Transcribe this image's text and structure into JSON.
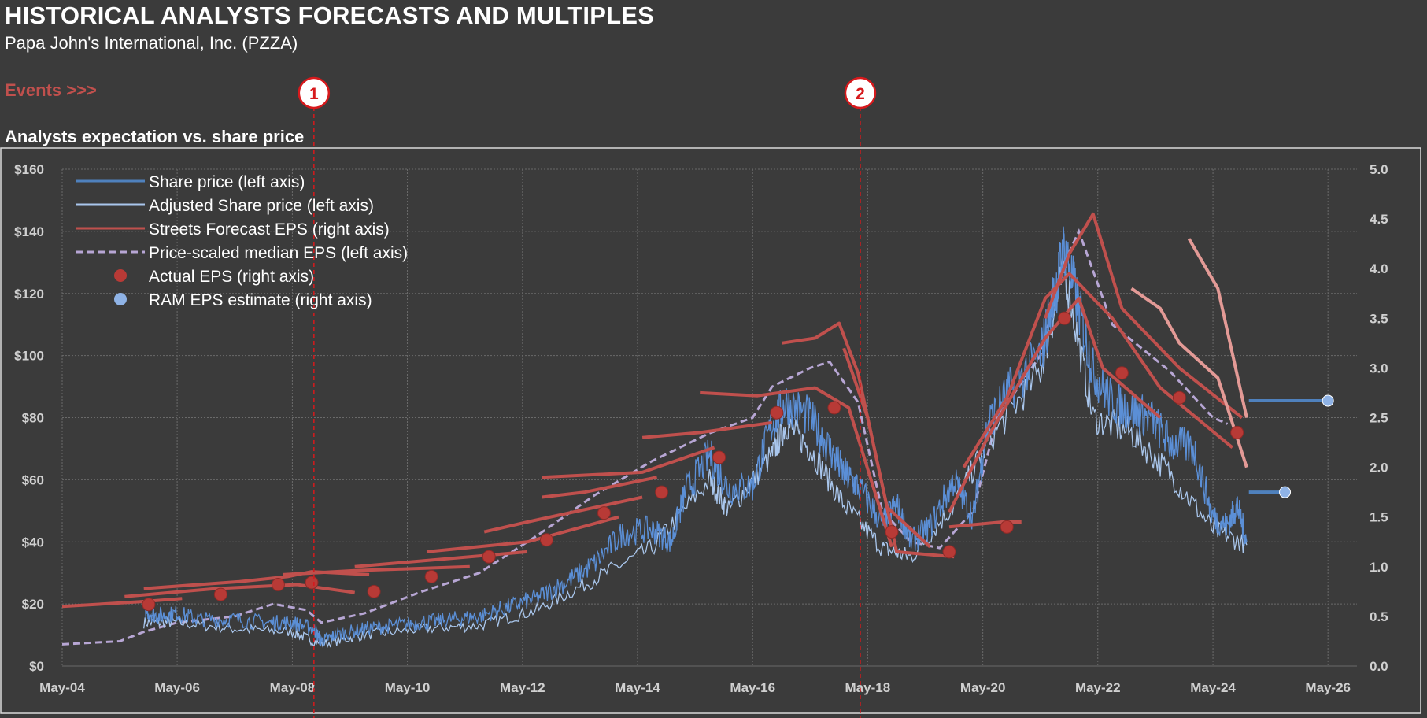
{
  "header": {
    "title": "HISTORICAL ANALYSTS FORECASTS AND MULTIPLES",
    "subtitle": "Papa John's International, Inc. (PZZA)",
    "events_label": "Events >>>",
    "section_title": "Analysts expectation  vs. share price"
  },
  "events": [
    {
      "label": "1",
      "date": "2008-09-15"
    },
    {
      "label": "2",
      "date": "2018-03-15"
    }
  ],
  "colors": {
    "background": "#3b3b3b",
    "plot_border": "#d9d9d9",
    "grid": "#6a6a6a",
    "share_price": "#5b8fd6",
    "adjusted_price": "#a9c6ec",
    "streets_eps": "#c0504d",
    "streets_eps_recent": "#e39a96",
    "median_eps": "#b7a6d4",
    "actual_eps": "#b83a36",
    "ram_eps": "#8fb3e6",
    "ram_line": "#4f81bd",
    "event": "#d7191c",
    "events_text": "#c0504d"
  },
  "chart_data": {
    "type": "line",
    "xlim": [
      "2004-05-01",
      "2026-11-01"
    ],
    "ylim_left": [
      0,
      160
    ],
    "ylim_right": [
      0,
      5.0
    ],
    "grid": true,
    "legend_position": "top-left",
    "x_ticks": [
      "May-04",
      "May-06",
      "May-08",
      "May-10",
      "May-12",
      "May-14",
      "May-16",
      "May-18",
      "May-20",
      "May-22",
      "May-24",
      "May-26"
    ],
    "y_left_ticks": [
      "$0",
      "$20",
      "$40",
      "$60",
      "$80",
      "$100",
      "$120",
      "$140",
      "$160"
    ],
    "y_right_ticks": [
      "0.0",
      "0.5",
      "1.0",
      "1.5",
      "2.0",
      "2.5",
      "3.0",
      "3.5",
      "4.0",
      "4.5",
      "5.0"
    ],
    "legend": [
      "Share price (left axis)",
      "Adjusted Share price (left axis)",
      "Streets Forecast EPS (right axis)",
      "Price-scaled median EPS (left axis)",
      "Actual EPS (right axis)",
      "RAM EPS estimate (right axis)"
    ],
    "share_price": [
      [
        "2005-10-01",
        18
      ],
      [
        "2006-01-01",
        16
      ],
      [
        "2006-05-01",
        17
      ],
      [
        "2006-10-01",
        15
      ],
      [
        "2007-05-01",
        15
      ],
      [
        "2007-12-01",
        14
      ],
      [
        "2008-05-01",
        14
      ],
      [
        "2008-09-15",
        12
      ],
      [
        "2008-11-01",
        8
      ],
      [
        "2009-02-01",
        10
      ],
      [
        "2009-08-01",
        12
      ],
      [
        "2010-02-01",
        13
      ],
      [
        "2010-08-01",
        14
      ],
      [
        "2011-02-01",
        15
      ],
      [
        "2011-08-01",
        16
      ],
      [
        "2012-02-01",
        19
      ],
      [
        "2012-08-01",
        22
      ],
      [
        "2013-02-01",
        27
      ],
      [
        "2013-08-01",
        33
      ],
      [
        "2014-02-01",
        43
      ],
      [
        "2014-08-01",
        44
      ],
      [
        "2014-12-01",
        40
      ],
      [
        "2015-03-01",
        56
      ],
      [
        "2015-08-01",
        68
      ],
      [
        "2015-12-01",
        57
      ],
      [
        "2016-05-01",
        58
      ],
      [
        "2016-09-01",
        78
      ],
      [
        "2016-12-01",
        85
      ],
      [
        "2017-05-01",
        80
      ],
      [
        "2017-09-01",
        70
      ],
      [
        "2017-12-01",
        62
      ],
      [
        "2018-03-01",
        58
      ],
      [
        "2018-08-01",
        46
      ],
      [
        "2018-11-01",
        52
      ],
      [
        "2019-02-01",
        40
      ],
      [
        "2019-06-01",
        45
      ],
      [
        "2019-11-01",
        60
      ],
      [
        "2020-03-01",
        48
      ],
      [
        "2020-06-01",
        78
      ],
      [
        "2020-11-01",
        90
      ],
      [
        "2021-05-01",
        100
      ],
      [
        "2021-08-01",
        120
      ],
      [
        "2021-10-01",
        135
      ],
      [
        "2022-01-01",
        115
      ],
      [
        "2022-04-01",
        95
      ],
      [
        "2022-08-01",
        85
      ],
      [
        "2022-12-01",
        82
      ],
      [
        "2023-04-01",
        80
      ],
      [
        "2023-08-01",
        72
      ],
      [
        "2024-01-01",
        70
      ],
      [
        "2024-05-01",
        48
      ],
      [
        "2024-08-01",
        45
      ],
      [
        "2024-10-01",
        52
      ],
      [
        "2024-12-01",
        40
      ]
    ],
    "adjusted_share_price": [
      [
        "2005-10-01",
        14
      ],
      [
        "2006-05-01",
        14
      ],
      [
        "2007-05-01",
        12
      ],
      [
        "2008-05-01",
        11
      ],
      [
        "2008-11-01",
        7
      ],
      [
        "2009-08-01",
        10
      ],
      [
        "2010-08-01",
        12
      ],
      [
        "2011-08-01",
        13
      ],
      [
        "2012-08-01",
        18
      ],
      [
        "2013-08-01",
        28
      ],
      [
        "2014-08-01",
        38
      ],
      [
        "2015-08-01",
        60
      ],
      [
        "2015-12-01",
        50
      ],
      [
        "2016-09-01",
        68
      ],
      [
        "2016-12-01",
        78
      ],
      [
        "2017-05-01",
        70
      ],
      [
        "2017-12-01",
        52
      ],
      [
        "2018-08-01",
        38
      ],
      [
        "2019-02-01",
        35
      ],
      [
        "2019-11-01",
        52
      ],
      [
        "2020-06-01",
        72
      ],
      [
        "2021-05-01",
        95
      ],
      [
        "2021-10-01",
        128
      ],
      [
        "2022-04-01",
        80
      ],
      [
        "2022-12-01",
        75
      ],
      [
        "2023-08-01",
        62
      ],
      [
        "2024-05-01",
        44
      ],
      [
        "2024-12-01",
        39
      ]
    ],
    "median_eps_price": [
      [
        "2004-05-01",
        7
      ],
      [
        "2005-05-01",
        8
      ],
      [
        "2005-10-01",
        11
      ],
      [
        "2006-05-01",
        14
      ],
      [
        "2007-05-01",
        16
      ],
      [
        "2008-01-01",
        20
      ],
      [
        "2008-08-01",
        18
      ],
      [
        "2008-11-01",
        14
      ],
      [
        "2009-08-01",
        17
      ],
      [
        "2010-08-01",
        24
      ],
      [
        "2011-08-01",
        30
      ],
      [
        "2012-08-01",
        42
      ],
      [
        "2013-08-01",
        55
      ],
      [
        "2014-08-01",
        66
      ],
      [
        "2015-08-01",
        75
      ],
      [
        "2016-05-01",
        80
      ],
      [
        "2016-09-01",
        90
      ],
      [
        "2017-05-01",
        96
      ],
      [
        "2017-09-01",
        98
      ],
      [
        "2018-03-01",
        85
      ],
      [
        "2018-08-01",
        50
      ],
      [
        "2019-02-01",
        40
      ],
      [
        "2019-08-01",
        38
      ],
      [
        "2020-03-01",
        50
      ],
      [
        "2020-08-01",
        80
      ],
      [
        "2021-05-01",
        100
      ],
      [
        "2021-10-01",
        130
      ],
      [
        "2022-01-01",
        140
      ],
      [
        "2022-08-01",
        110
      ],
      [
        "2023-08-01",
        95
      ],
      [
        "2024-05-01",
        80
      ],
      [
        "2024-08-01",
        78
      ]
    ],
    "streets_forecast_eps": [
      [
        [
          "2004-05-01",
          0.6
        ],
        [
          "2005-10-01",
          0.65
        ],
        [
          "2006-06-01",
          0.68
        ]
      ],
      [
        [
          "2005-06-01",
          0.7
        ],
        [
          "2007-01-01",
          0.78
        ],
        [
          "2008-06-01",
          0.82
        ],
        [
          "2009-06-01",
          0.74
        ]
      ],
      [
        [
          "2005-10-01",
          0.78
        ],
        [
          "2007-06-01",
          0.85
        ],
        [
          "2008-04-01",
          0.9
        ],
        [
          "2008-09-01",
          0.95
        ],
        [
          "2009-09-01",
          0.92
        ]
      ],
      [
        [
          "2008-03-01",
          0.92
        ],
        [
          "2009-06-01",
          0.96
        ],
        [
          "2011-06-01",
          1.0
        ]
      ],
      [
        [
          "2009-06-01",
          1.0
        ],
        [
          "2010-06-01",
          1.05
        ],
        [
          "2012-06-01",
          1.15
        ]
      ],
      [
        [
          "2010-09-01",
          1.15
        ],
        [
          "2012-06-01",
          1.25
        ],
        [
          "2014-01-01",
          1.5
        ]
      ],
      [
        [
          "2011-09-01",
          1.35
        ],
        [
          "2012-06-01",
          1.45
        ],
        [
          "2014-06-01",
          1.7
        ]
      ],
      [
        [
          "2012-09-01",
          1.7
        ],
        [
          "2013-06-01",
          1.75
        ],
        [
          "2014-09-01",
          1.9
        ]
      ],
      [
        [
          "2012-09-01",
          1.9
        ],
        [
          "2014-06-01",
          1.95
        ],
        [
          "2015-09-01",
          2.2
        ]
      ],
      [
        [
          "2014-06-01",
          2.3
        ],
        [
          "2015-06-01",
          2.35
        ],
        [
          "2016-09-01",
          2.45
        ]
      ],
      [
        [
          "2015-06-01",
          2.75
        ],
        [
          "2016-06-01",
          2.72
        ],
        [
          "2017-06-01",
          2.8
        ],
        [
          "2018-01-01",
          2.6
        ],
        [
          "2018-10-01",
          1.2
        ]
      ],
      [
        [
          "2016-11-01",
          3.25
        ],
        [
          "2017-06-01",
          3.3
        ],
        [
          "2017-11-01",
          3.45
        ],
        [
          "2018-03-01",
          2.95
        ],
        [
          "2018-09-01",
          1.6
        ],
        [
          "2019-06-01",
          1.2
        ]
      ],
      [
        [
          "2017-12-01",
          3.2
        ],
        [
          "2018-05-01",
          2.5
        ],
        [
          "2018-11-01",
          1.15
        ],
        [
          "2019-11-01",
          1.1
        ]
      ],
      [
        [
          "2019-10-01",
          1.4
        ],
        [
          "2020-09-01",
          1.45
        ],
        [
          "2021-01-01",
          1.45
        ]
      ],
      [
        [
          "2019-10-01",
          1.55
        ],
        [
          "2020-06-01",
          2.3
        ],
        [
          "2021-06-01",
          3.3
        ],
        [
          "2022-01-01",
          3.7
        ],
        [
          "2022-06-01",
          3.0
        ],
        [
          "2023-06-01",
          2.5
        ]
      ],
      [
        [
          "2020-01-01",
          2.0
        ],
        [
          "2020-10-01",
          2.7
        ],
        [
          "2021-06-01",
          3.7
        ],
        [
          "2021-11-01",
          3.95
        ],
        [
          "2022-08-01",
          3.5
        ],
        [
          "2023-06-01",
          2.8
        ],
        [
          "2024-09-01",
          2.2
        ]
      ],
      [
        [
          "2021-06-01",
          3.5
        ],
        [
          "2021-11-01",
          4.15
        ],
        [
          "2022-04-01",
          4.55
        ],
        [
          "2022-10-01",
          3.6
        ],
        [
          "2023-10-01",
          3.0
        ],
        [
          "2024-11-01",
          2.5
        ]
      ]
    ],
    "streets_forecast_eps_recent": [
      [
        [
          "2022-12-01",
          3.8
        ],
        [
          "2023-06-01",
          3.6
        ],
        [
          "2023-10-01",
          3.25
        ],
        [
          "2024-06-01",
          2.9
        ],
        [
          "2024-12-01",
          2.0
        ]
      ],
      [
        [
          "2023-12-01",
          4.3
        ],
        [
          "2024-06-01",
          3.8
        ],
        [
          "2024-12-01",
          2.5
        ]
      ]
    ],
    "actual_eps": [
      [
        "2005-11-01",
        0.62
      ],
      [
        "2007-02-01",
        0.72
      ],
      [
        "2008-02-01",
        0.82
      ],
      [
        "2008-09-01",
        0.84
      ],
      [
        "2009-10-01",
        0.75
      ],
      [
        "2010-10-01",
        0.9
      ],
      [
        "2011-10-01",
        1.1
      ],
      [
        "2012-10-01",
        1.27
      ],
      [
        "2013-10-01",
        1.54
      ],
      [
        "2014-10-01",
        1.75
      ],
      [
        "2015-10-01",
        2.1
      ],
      [
        "2016-10-01",
        2.55
      ],
      [
        "2017-10-01",
        2.6
      ],
      [
        "2018-10-01",
        1.35
      ],
      [
        "2019-10-01",
        1.15
      ],
      [
        "2020-10-01",
        1.4
      ],
      [
        "2021-10-01",
        3.5
      ],
      [
        "2022-10-01",
        2.95
      ],
      [
        "2023-10-01",
        2.7
      ],
      [
        "2024-10-01",
        2.35
      ]
    ],
    "ram_eps_estimate": [
      {
        "from": "2024-12-15",
        "to": "2026-05-01",
        "value": 2.67
      },
      {
        "from": "2024-12-15",
        "to": "2025-08-01",
        "value": 1.75
      }
    ]
  }
}
